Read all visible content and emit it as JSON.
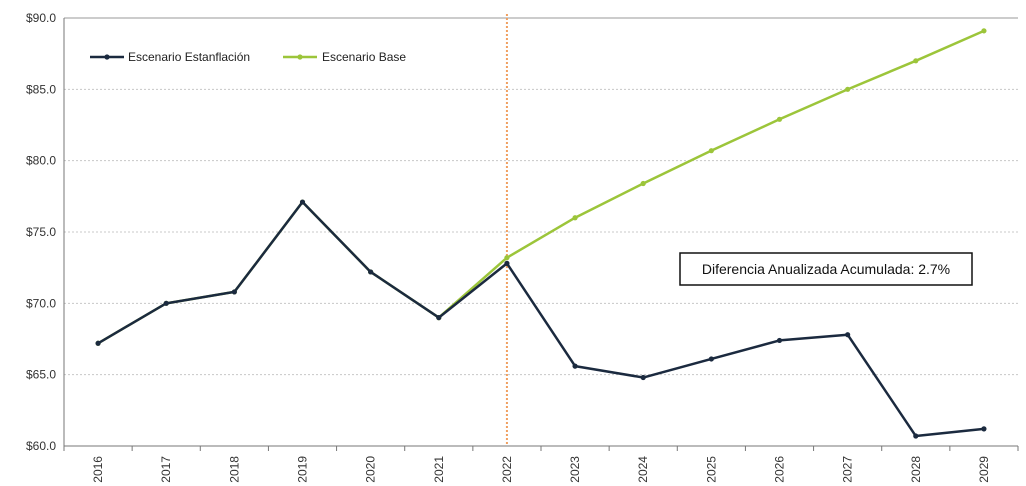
{
  "chart_data": {
    "type": "line",
    "title": "",
    "xlabel": "",
    "ylabel": "",
    "categories": [
      "2016",
      "2017",
      "2018",
      "2019",
      "2020",
      "2021",
      "2022",
      "2023",
      "2024",
      "2025",
      "2026",
      "2027",
      "2028",
      "2029"
    ],
    "y_ticks": [
      "$60.0",
      "$65.0",
      "$70.0",
      "$75.0",
      "$80.0",
      "$85.0",
      "$90.0"
    ],
    "ylim": [
      60,
      90
    ],
    "grid": true,
    "legend_position": "top-left",
    "series": [
      {
        "name": "Escenario Estanflación",
        "color": "#1b2a3f",
        "values": [
          67.2,
          70.0,
          70.8,
          77.1,
          72.2,
          69.0,
          72.8,
          65.6,
          64.8,
          66.1,
          67.4,
          67.8,
          60.7,
          61.2
        ]
      },
      {
        "name": "Escenario Base",
        "color": "#9cc53a",
        "values": [
          67.2,
          70.0,
          70.8,
          77.1,
          72.2,
          69.0,
          73.2,
          76.0,
          78.4,
          80.7,
          82.9,
          85.0,
          87.0,
          89.1
        ]
      }
    ],
    "reference_line": {
      "category": "2022",
      "color": "#f0a060"
    },
    "annotation": {
      "text": "Diferencia Anualizada Acumulada: 2.7%"
    }
  }
}
